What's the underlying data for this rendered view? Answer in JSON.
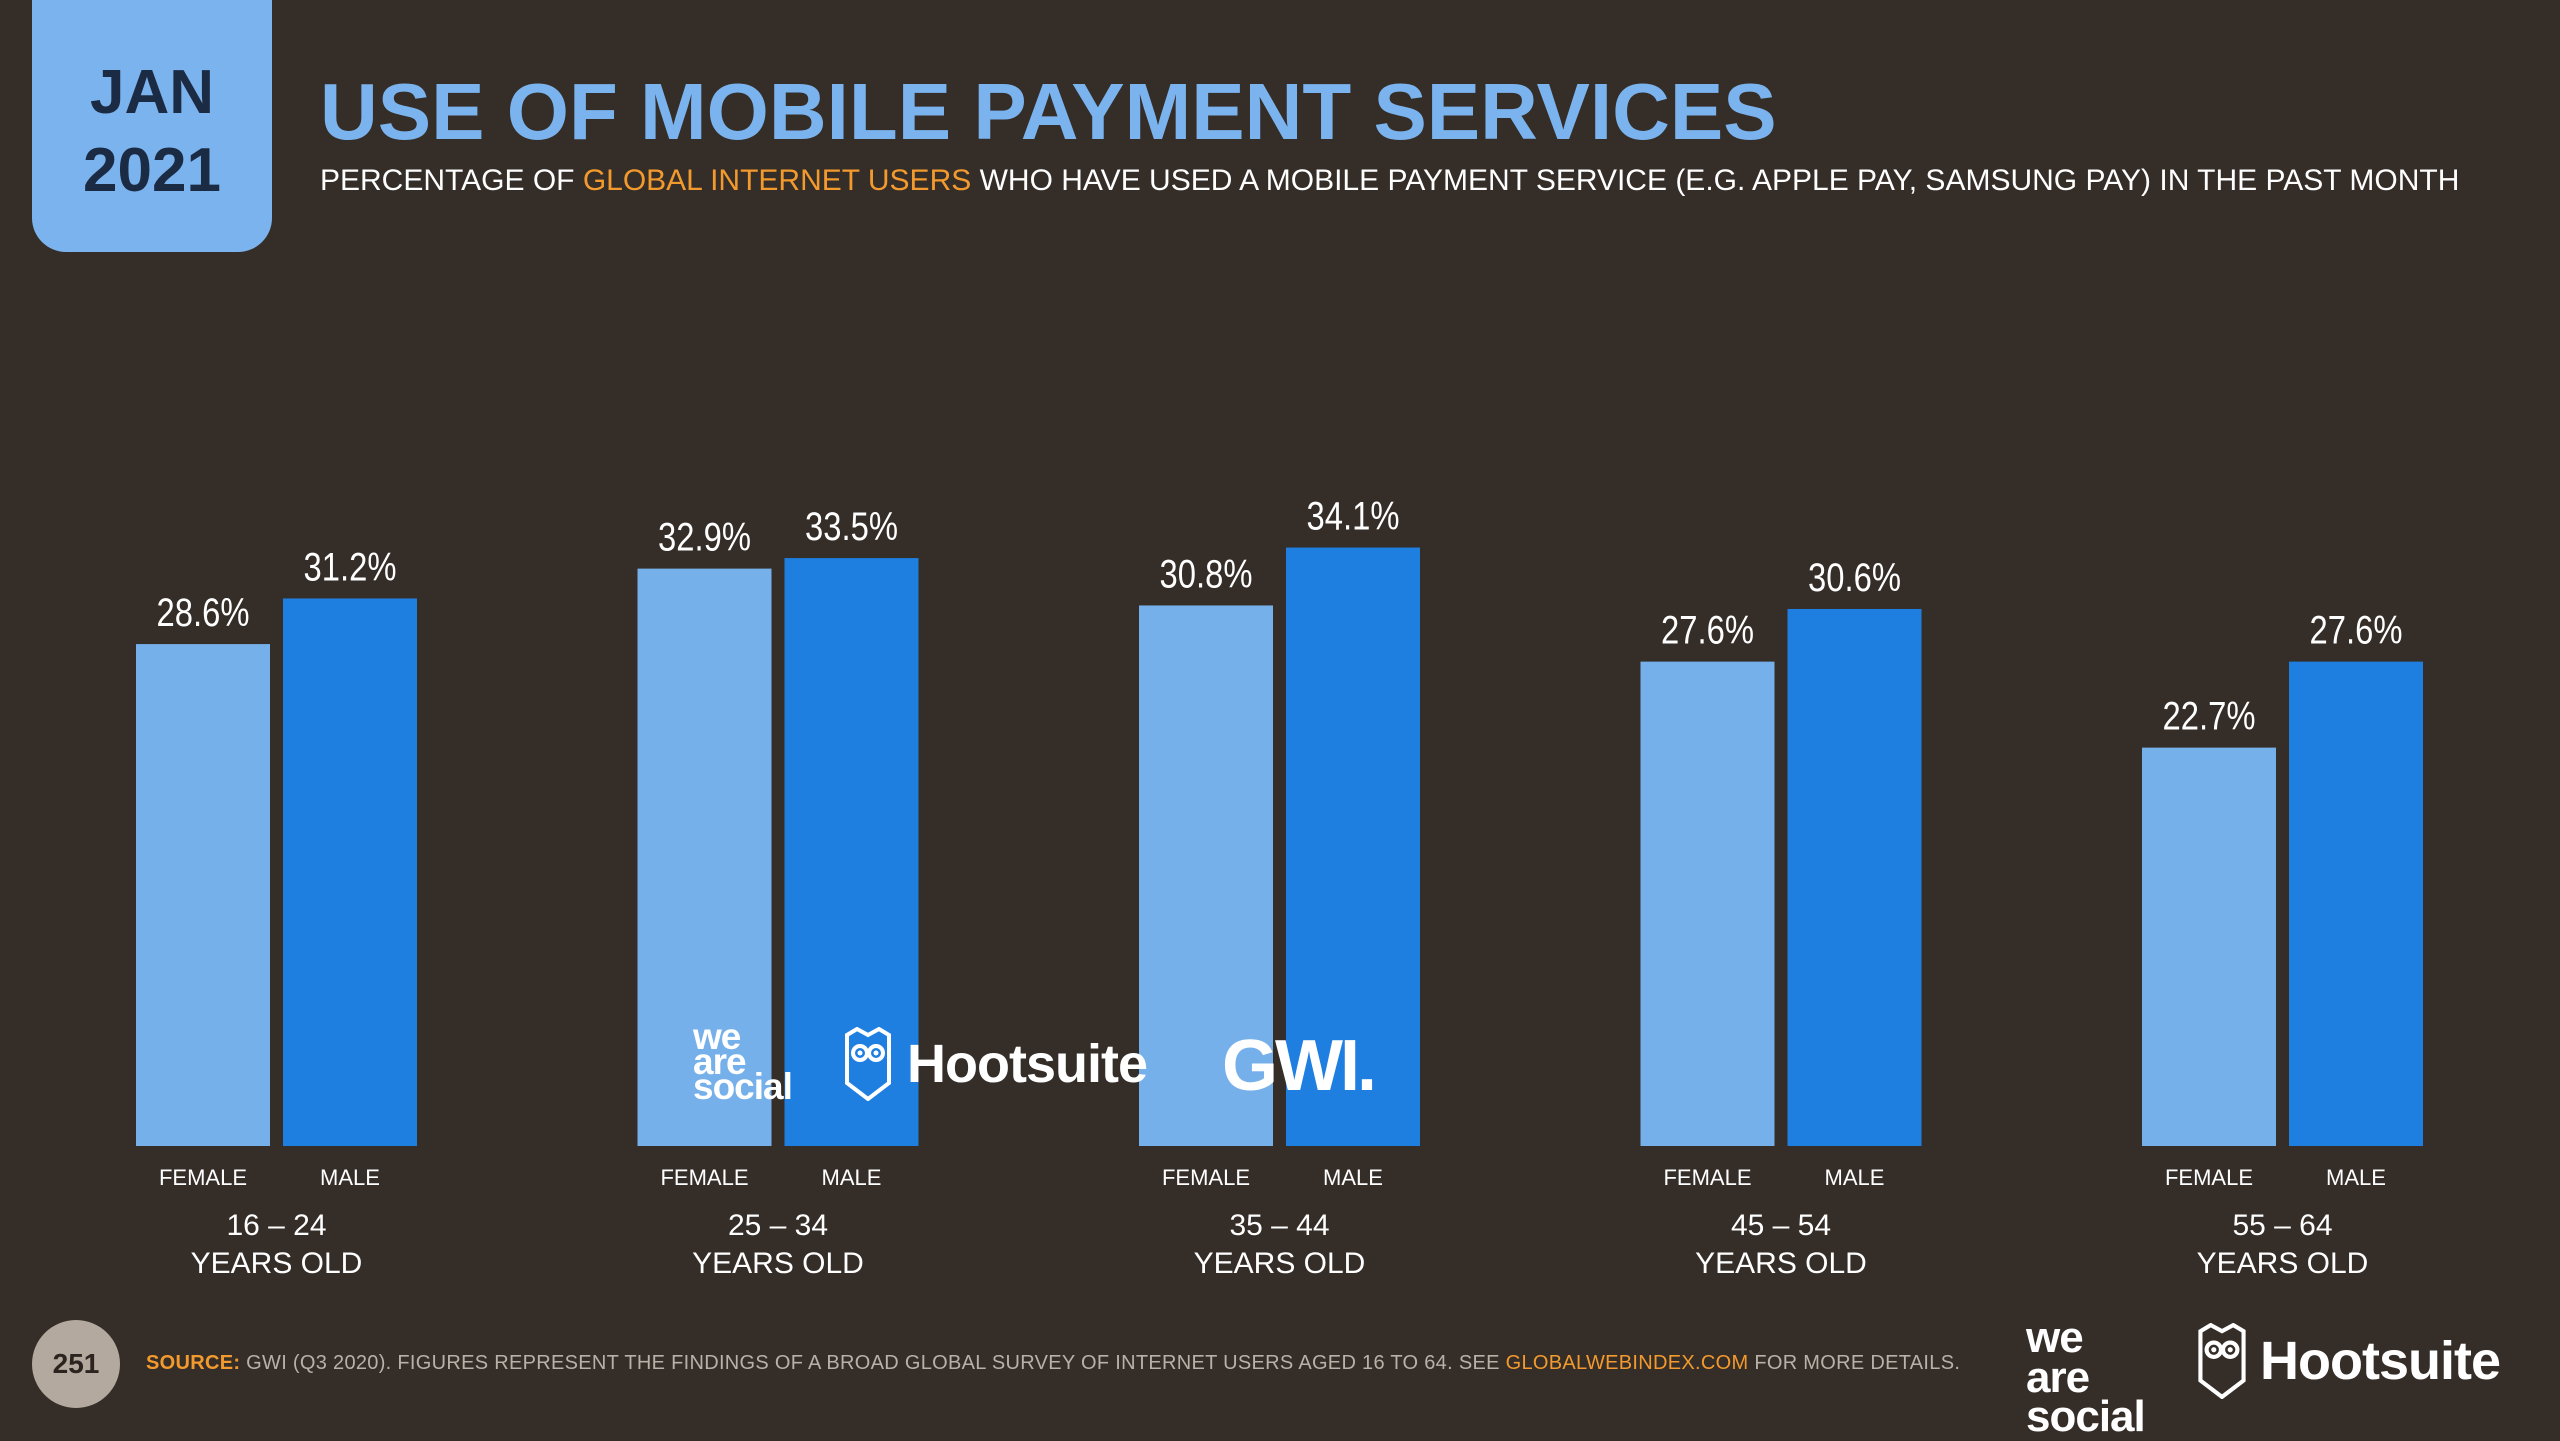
{
  "header": {
    "date_month": "JAN",
    "date_year": "2021",
    "title": "USE OF MOBILE PAYMENT SERVICES",
    "subtitle_pre": "PERCENTAGE OF ",
    "subtitle_highlight": "GLOBAL INTERNET USERS",
    "subtitle_post": " WHO HAVE USED A MOBILE PAYMENT SERVICE (E.G. APPLE PAY, SAMSUNG PAY) IN THE PAST MONTH"
  },
  "colors": {
    "background": "#352d28",
    "female_bar": "#76b0ea",
    "male_bar": "#1f7fe0",
    "accent": "#f29a2e",
    "title": "#7ab3ed"
  },
  "chart_data": {
    "type": "bar",
    "categories": [
      "16 – 24|YEARS OLD",
      "25 – 34|YEARS OLD",
      "35 – 44|YEARS OLD",
      "45 – 54|YEARS OLD",
      "55 – 64|YEARS OLD"
    ],
    "group_labels": [
      {
        "line1": "16 – 24",
        "line2": "YEARS OLD"
      },
      {
        "line1": "25 – 34",
        "line2": "YEARS OLD"
      },
      {
        "line1": "35 – 44",
        "line2": "YEARS OLD"
      },
      {
        "line1": "45 – 54",
        "line2": "YEARS OLD"
      },
      {
        "line1": "55 – 64",
        "line2": "YEARS OLD"
      }
    ],
    "series": [
      {
        "name": "FEMALE",
        "values": [
          28.6,
          32.9,
          30.8,
          27.6,
          22.7
        ],
        "labels": [
          "28.6%",
          "32.9%",
          "30.8%",
          "27.6%",
          "22.7%"
        ]
      },
      {
        "name": "MALE",
        "values": [
          31.2,
          33.5,
          34.1,
          30.6,
          27.6
        ],
        "labels": [
          "31.2%",
          "33.5%",
          "34.1%",
          "30.6%",
          "27.6%"
        ]
      }
    ],
    "value_suffix": "%",
    "grid": false,
    "legend": "none"
  },
  "watermark": {
    "we_are_social": [
      "we",
      "are",
      "social"
    ],
    "hootsuite": "Hootsuite",
    "gwi": "GWI."
  },
  "footer": {
    "page_number": "251",
    "source_label": "SOURCE:",
    "source_text": " GWI (Q3 2020). FIGURES REPRESENT THE FINDINGS OF A BROAD GLOBAL SURVEY OF INTERNET USERS AGED 16 TO 64. SEE ",
    "source_link": "GLOBALWEBINDEX.COM",
    "source_after": " FOR MORE DETAILS.",
    "logo_we_are_social": [
      "we",
      "are",
      "social"
    ],
    "logo_hootsuite": "Hootsuite"
  }
}
